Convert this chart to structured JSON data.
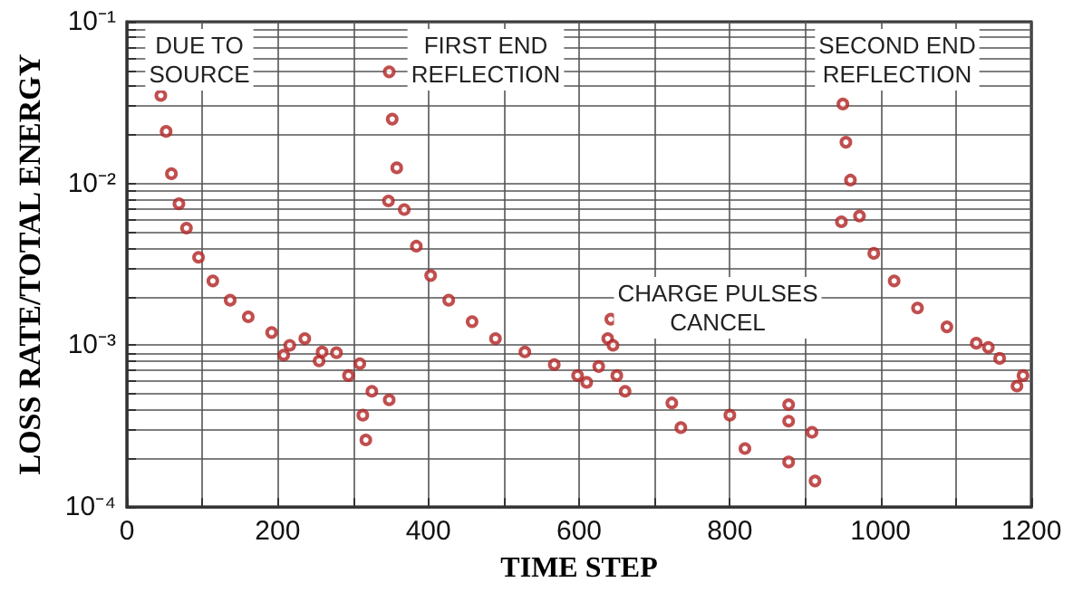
{
  "chart_data": {
    "type": "scatter",
    "xlabel": "TIME STEP",
    "ylabel": "LOSS RATE/TOTAL ENERGY",
    "annotations": [
      "DUE TO\nSOURCE",
      "FIRST END\nREFLECTION",
      "CHARGE PULSES\nCANCEL",
      "SECOND END\nREFLECTION"
    ],
    "series": [
      {
        "color": "#b22222",
        "x": [
          45,
          52,
          59,
          69,
          79,
          95,
          114,
          137,
          161,
          192,
          208,
          216,
          236,
          255,
          259,
          278,
          294,
          309,
          313,
          317,
          325,
          348,
          347,
          348,
          352,
          358,
          368,
          384,
          403,
          427,
          458,
          489,
          528,
          567,
          598,
          610,
          626,
          638,
          642,
          645,
          650,
          661,
          723,
          735,
          800,
          820,
          878,
          878,
          878,
          909,
          913,
          948,
          950,
          954,
          960,
          972,
          991,
          1018,
          1049,
          1088,
          1127,
          1143,
          1158,
          1181,
          1189
        ],
        "values": [
          0.035,
          0.021,
          0.0115,
          0.0075,
          0.0053,
          0.0035,
          0.0025,
          0.0019,
          0.0015,
          0.0012,
          0.00087,
          0.001,
          0.0011,
          0.0008,
          0.00091,
          0.0009,
          0.00065,
          0.00077,
          0.00037,
          0.00026,
          0.00052,
          0.00046,
          0.0078,
          0.049,
          0.025,
          0.0125,
          0.0069,
          0.0041,
          0.0027,
          0.0019,
          0.0014,
          0.0011,
          0.00091,
          0.00076,
          0.00065,
          0.00059,
          0.00074,
          0.0011,
          0.00145,
          0.001,
          0.00065,
          0.00052,
          0.00044,
          0.00031,
          0.00037,
          0.00023,
          0.00034,
          0.00019,
          0.00043,
          0.00029,
          0.000145,
          0.0058,
          0.031,
          0.018,
          0.0105,
          0.0063,
          0.0037,
          0.0025,
          0.0017,
          0.0013,
          0.00103,
          0.00097,
          0.00083,
          0.00056,
          0.00065
        ]
      }
    ],
    "xlim": [
      0,
      1200
    ],
    "xticks": [
      0,
      {
        "value": 100,
        "label": null
      },
      200,
      {
        "value": 300,
        "label": null
      },
      400,
      {
        "value": 500,
        "label": null
      },
      600,
      {
        "value": 700,
        "label": null
      },
      800,
      {
        "value": 900,
        "label": null
      },
      1000,
      {
        "value": 1100,
        "label": null
      },
      1200
    ],
    "ylim": [
      0.0001,
      0.1
    ],
    "log": "y",
    "yticks": [
      {
        "value": 0.0001,
        "label": "10⁻⁴"
      },
      {
        "value": 0.0002,
        "label": null
      },
      {
        "value": 0.0003,
        "label": null
      },
      {
        "value": 0.0004,
        "label": null
      },
      {
        "value": 0.0005,
        "label": null
      },
      {
        "value": 0.0006,
        "label": null
      },
      {
        "value": 0.0007,
        "label": null
      },
      {
        "value": 0.0008,
        "label": null
      },
      {
        "value": 0.0009,
        "label": null
      },
      {
        "value": 0.001,
        "label": "10⁻³"
      },
      {
        "value": 0.002,
        "label": null
      },
      {
        "value": 0.003,
        "label": null
      },
      {
        "value": 0.004,
        "label": null
      },
      {
        "value": 0.005,
        "label": null
      },
      {
        "value": 0.006,
        "label": null
      },
      {
        "value": 0.007,
        "label": null
      },
      {
        "value": 0.008,
        "label": null
      },
      {
        "value": 0.009,
        "label": null
      },
      {
        "value": 0.01,
        "label": "10⁻²"
      },
      {
        "value": 0.02,
        "label": null
      },
      {
        "value": 0.03,
        "label": null
      },
      {
        "value": 0.04,
        "label": null
      },
      {
        "value": 0.05,
        "label": null
      },
      {
        "value": 0.06,
        "label": null
      },
      {
        "value": 0.07,
        "label": null
      },
      {
        "value": 0.08,
        "label": null
      },
      {
        "value": 0.09,
        "label": null
      },
      {
        "value": 0.1,
        "label": "10⁻¹"
      }
    ],
    "grid": true,
    "marker": "circle"
  }
}
